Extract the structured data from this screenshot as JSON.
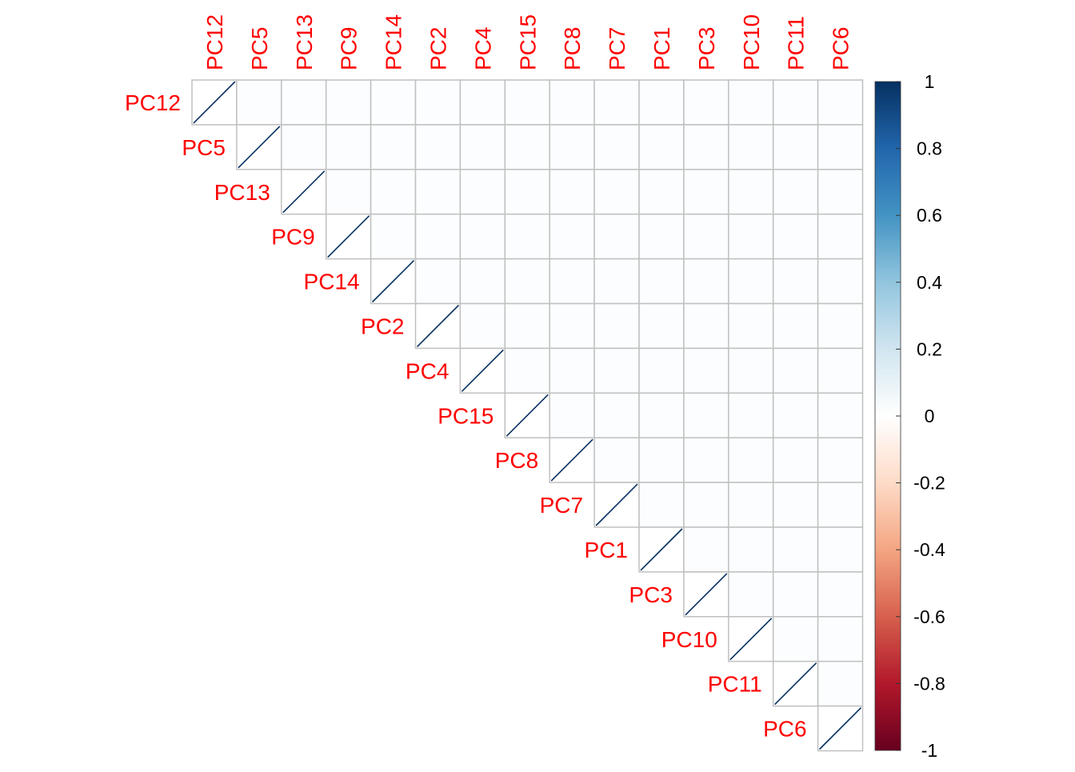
{
  "chart_data": {
    "type": "heatmap",
    "title": "",
    "layout": "upper-triangle",
    "label_color": "#ff0000",
    "grid_color": "#c0c0c0",
    "labels": [
      "PC12",
      "PC5",
      "PC13",
      "PC9",
      "PC14",
      "PC2",
      "PC4",
      "PC15",
      "PC8",
      "PC7",
      "PC1",
      "PC3",
      "PC10",
      "PC11",
      "PC6"
    ],
    "diagonal_value": 1,
    "off_diagonal_value": 0,
    "colorbar": {
      "range": [
        -1,
        1
      ],
      "ticks": [
        "1",
        "0.8",
        "0.6",
        "0.4",
        "0.2",
        "0",
        "-0.2",
        "-0.4",
        "-0.6",
        "-0.8",
        "-1"
      ],
      "colors": [
        "#67001f",
        "#b2182b",
        "#d6604d",
        "#f4a582",
        "#fddbc7",
        "#ffffff",
        "#d1e5f0",
        "#92c5de",
        "#4393c3",
        "#2166ac",
        "#053061"
      ]
    }
  }
}
